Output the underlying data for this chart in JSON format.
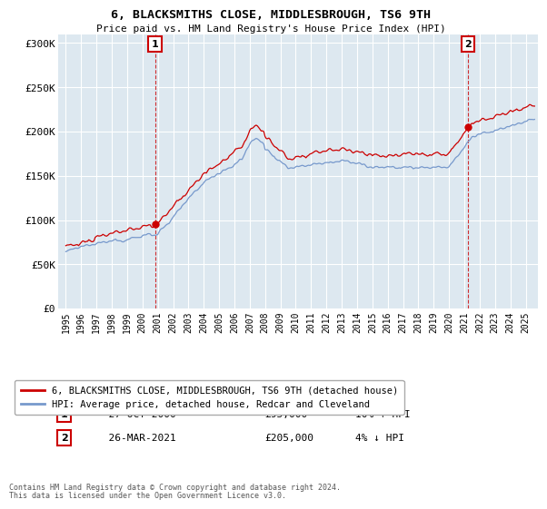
{
  "title": "6, BLACKSMITHS CLOSE, MIDDLESBROUGH, TS6 9TH",
  "subtitle": "Price paid vs. HM Land Registry's House Price Index (HPI)",
  "ylabel_ticks": [
    "£0",
    "£50K",
    "£100K",
    "£150K",
    "£200K",
    "£250K",
    "£300K"
  ],
  "ytick_values": [
    0,
    50000,
    100000,
    150000,
    200000,
    250000,
    300000
  ],
  "ylim": [
    0,
    310000
  ],
  "xlim_start": 1994.5,
  "xlim_end": 2025.8,
  "legend_line1": "6, BLACKSMITHS CLOSE, MIDDLESBROUGH, TS6 9TH (detached house)",
  "legend_line2": "HPI: Average price, detached house, Redcar and Cleveland",
  "line1_color": "#cc0000",
  "line2_color": "#7799cc",
  "point1_label": "1",
  "point1_date": "27-OCT-2000",
  "point1_price": "£95,000",
  "point1_hpi": "10% ↑ HPI",
  "point1_x": 2000.82,
  "point1_y": 95000,
  "point2_label": "2",
  "point2_date": "26-MAR-2021",
  "point2_price": "£205,000",
  "point2_hpi": "4% ↓ HPI",
  "point2_x": 2021.23,
  "point2_y": 205000,
  "footnote1": "Contains HM Land Registry data © Crown copyright and database right 2024.",
  "footnote2": "This data is licensed under the Open Government Licence v3.0.",
  "background_color": "#ffffff",
  "plot_bg_color": "#dde8f0"
}
